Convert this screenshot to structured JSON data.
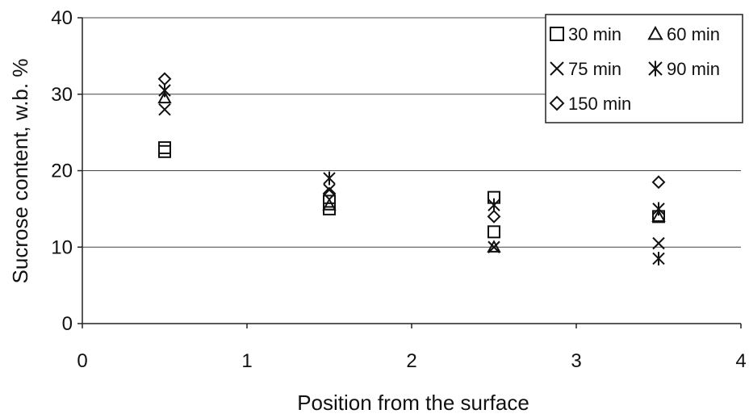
{
  "chart_data": {
    "type": "scatter",
    "xlabel": "Position from the surface",
    "ylabel": "Sucrose content, w.b. %",
    "xlim": [
      0,
      4
    ],
    "ylim": [
      0,
      40
    ],
    "x_ticks": [
      "0",
      "1",
      "2",
      "3",
      "4"
    ],
    "y_ticks": [
      "0",
      "10",
      "20",
      "30",
      "40"
    ],
    "grid": "horizontal",
    "legend_position": "top-right",
    "series": [
      {
        "name": "30 min",
        "marker": "square",
        "points": [
          [
            0.5,
            22.5
          ],
          [
            0.5,
            23.0
          ],
          [
            1.5,
            15.0
          ],
          [
            1.5,
            16.0
          ],
          [
            2.5,
            12.0
          ],
          [
            2.5,
            16.5
          ],
          [
            3.5,
            14.0
          ]
        ]
      },
      {
        "name": "60 min",
        "marker": "triangle",
        "points": [
          [
            0.5,
            29.5
          ],
          [
            1.5,
            15.5
          ],
          [
            2.5,
            10.0
          ],
          [
            3.5,
            14.0
          ]
        ]
      },
      {
        "name": "75 min",
        "marker": "x",
        "points": [
          [
            0.5,
            28.0
          ],
          [
            1.5,
            17.5
          ],
          [
            2.5,
            10.0
          ],
          [
            3.5,
            10.5
          ]
        ]
      },
      {
        "name": "90 min",
        "marker": "asterisk",
        "points": [
          [
            0.5,
            30.5
          ],
          [
            1.5,
            19.0
          ],
          [
            2.5,
            15.5
          ],
          [
            3.5,
            15.0
          ],
          [
            3.5,
            8.5
          ]
        ]
      },
      {
        "name": "150 min",
        "marker": "diamond",
        "points": [
          [
            0.5,
            32.0
          ],
          [
            1.5,
            17.0
          ],
          [
            2.5,
            14.0
          ],
          [
            3.5,
            18.5
          ]
        ]
      }
    ]
  }
}
